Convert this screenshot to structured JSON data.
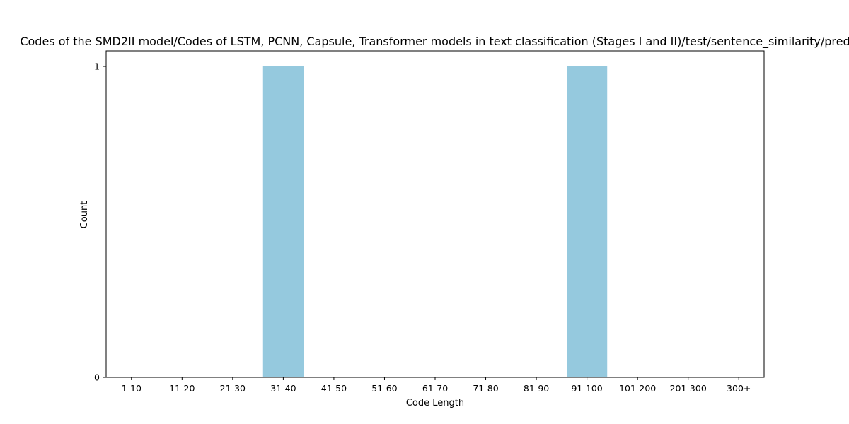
{
  "chart_data": {
    "type": "bar",
    "title": "Codes of the SMD2II model/Codes of LSTM, PCNN, Capsule, Transformer models in text classification (Stages I and II)/test/sentence_similarity/pred",
    "xlabel": "Code Length",
    "ylabel": "Count",
    "categories": [
      "1-10",
      "11-20",
      "21-30",
      "31-40",
      "41-50",
      "51-60",
      "61-70",
      "71-80",
      "81-90",
      "91-100",
      "101-200",
      "201-300",
      "300+"
    ],
    "values": [
      0,
      0,
      0,
      1,
      0,
      0,
      0,
      0,
      0,
      1,
      0,
      0,
      0
    ],
    "ylim": [
      0,
      1
    ],
    "yticks": [
      "0",
      "1"
    ],
    "bar_color": "#95c9de",
    "grid": false,
    "legend": "none"
  }
}
